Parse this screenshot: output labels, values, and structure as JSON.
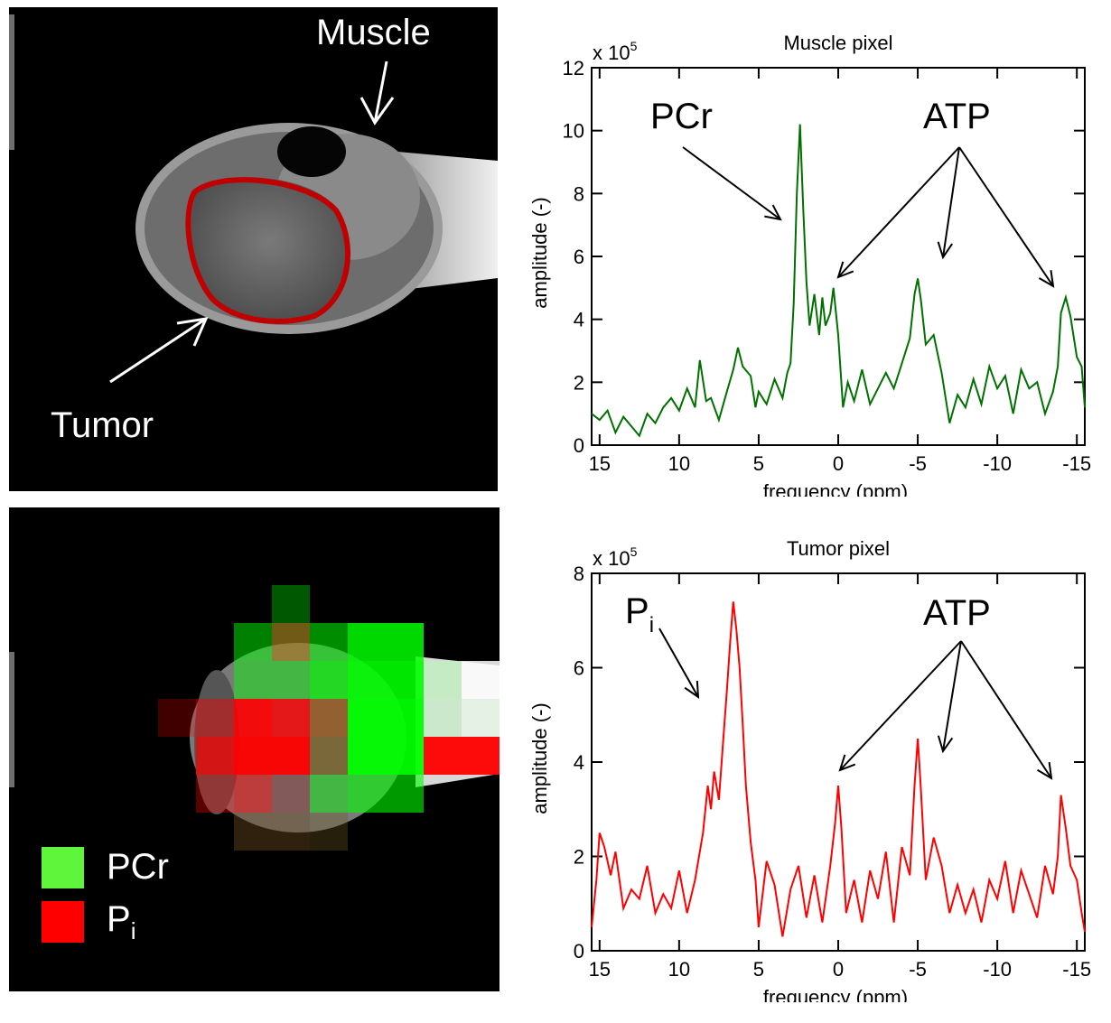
{
  "mri_top": {
    "muscle_label": "Muscle",
    "tumor_label": "Tumor",
    "outline_color": "#c00000"
  },
  "mri_bottom": {
    "legend": [
      {
        "label": "PCr",
        "color": "#5ef53a"
      },
      {
        "label": "P",
        "sub": "i",
        "color": "#ff0000"
      }
    ],
    "pcr_map_color": "#00ff00",
    "pi_map_color": "#ff0000"
  },
  "chart_data": [
    {
      "type": "line",
      "title": "Muscle pixel",
      "xlabel": "frequency (ppm)",
      "ylabel": "amplitude (-)",
      "y_multiplier": "x 10",
      "y_exponent": "5",
      "xlim": [
        15.5,
        -15.5
      ],
      "ylim": [
        0,
        12
      ],
      "xticks": [
        15,
        10,
        5,
        0,
        -5,
        -10,
        -15
      ],
      "yticks": [
        0,
        2,
        4,
        6,
        8,
        10,
        12
      ],
      "line_color": "#007000",
      "annotations": [
        {
          "text": "PCr"
        },
        {
          "text": "ATP"
        }
      ],
      "series": [
        {
          "name": "Muscle pixel",
          "x": [
            15.5,
            15,
            14.5,
            14,
            13.5,
            13,
            12.5,
            12,
            11.5,
            11,
            10.5,
            10,
            9.5,
            9,
            8.7,
            8.3,
            8,
            7.5,
            7,
            6.6,
            6.3,
            6,
            5.5,
            5.2,
            5,
            4.5,
            4,
            3.5,
            3.2,
            3,
            2.8,
            2.6,
            2.4,
            2.2,
            2,
            1.8,
            1.5,
            1.2,
            1,
            0.8,
            0.5,
            0.3,
            0,
            -0.3,
            -0.6,
            -1,
            -1.5,
            -2,
            -2.5,
            -3,
            -3.5,
            -4,
            -4.5,
            -4.8,
            -5,
            -5.2,
            -5.5,
            -6,
            -6.5,
            -7,
            -7.5,
            -8,
            -8.5,
            -9,
            -9.5,
            -10,
            -10.5,
            -11,
            -11.5,
            -12,
            -12.5,
            -13,
            -13.5,
            -13.8,
            -14,
            -14.3,
            -14.6,
            -15,
            -15.3,
            -15.5
          ],
          "y": [
            1,
            0.8,
            1.1,
            0.4,
            0.9,
            0.6,
            0.3,
            1,
            0.7,
            1.2,
            1.5,
            1.1,
            1.8,
            1.2,
            2.7,
            1.4,
            1.5,
            0.8,
            1.7,
            2.4,
            3.1,
            2.5,
            2.2,
            1.2,
            1.7,
            1.3,
            2.1,
            1.5,
            2.3,
            2.6,
            4.5,
            8,
            10.2,
            7.5,
            5.2,
            3.8,
            4.8,
            3.5,
            4.7,
            3.8,
            4.2,
            5,
            3.5,
            1.2,
            2,
            1.4,
            2.4,
            1.3,
            1.8,
            2.3,
            1.8,
            2.6,
            3.4,
            4.8,
            5.3,
            4.6,
            3.2,
            3.5,
            2.3,
            0.7,
            1.6,
            1.2,
            2.1,
            1.3,
            2.5,
            1.8,
            2.2,
            1,
            2.4,
            1.8,
            2,
            1,
            1.7,
            2.5,
            4.2,
            4.7,
            4.1,
            2.8,
            2.5,
            1.2
          ]
        }
      ]
    },
    {
      "type": "line",
      "title": "Tumor pixel",
      "xlabel": "frequency (ppm)",
      "ylabel": "amplitude (-)",
      "y_multiplier": "x 10",
      "y_exponent": "5",
      "xlim": [
        15.5,
        -15.5
      ],
      "ylim": [
        0,
        8
      ],
      "xticks": [
        15,
        10,
        5,
        0,
        -5,
        -10,
        -15
      ],
      "yticks": [
        0,
        2,
        4,
        6,
        8
      ],
      "line_color": "#ff0000",
      "annotations": [
        {
          "text": "P",
          "sub": "i"
        },
        {
          "text": "ATP"
        }
      ],
      "series": [
        {
          "name": "Tumor pixel",
          "x": [
            15.5,
            15.2,
            15,
            14.7,
            14.3,
            14,
            13.5,
            13,
            12.5,
            12,
            11.5,
            11,
            10.5,
            10,
            9.5,
            9,
            8.5,
            8.2,
            8,
            7.8,
            7.5,
            7.2,
            7,
            6.8,
            6.6,
            6.4,
            6.2,
            6,
            5.8,
            5.5,
            5.2,
            5,
            4.5,
            4,
            3.5,
            3,
            2.5,
            2,
            1.5,
            1,
            0.5,
            0.2,
            0,
            -0.2,
            -0.5,
            -1,
            -1.5,
            -2,
            -2.5,
            -3,
            -3.5,
            -4,
            -4.5,
            -4.8,
            -5,
            -5.2,
            -5.5,
            -6,
            -6.5,
            -7,
            -7.5,
            -8,
            -8.5,
            -9,
            -9.5,
            -10,
            -10.5,
            -11,
            -11.5,
            -12,
            -12.5,
            -13,
            -13.5,
            -13.8,
            -14,
            -14.3,
            -14.6,
            -15,
            -15.3,
            -15.5
          ],
          "y": [
            0.5,
            1.5,
            2.5,
            2.2,
            1.6,
            2.1,
            0.9,
            1.3,
            1.1,
            1.8,
            0.8,
            1.2,
            0.9,
            1.7,
            0.8,
            1.5,
            2.5,
            3.5,
            3,
            3.8,
            3.2,
            4.6,
            5.5,
            6.5,
            7.4,
            6.8,
            6,
            4.8,
            3.5,
            2.3,
            1.5,
            0.5,
            1.9,
            1.4,
            0.3,
            1.3,
            1.8,
            0.7,
            1.6,
            0.6,
            1.8,
            2.7,
            3.5,
            2.6,
            0.8,
            1.5,
            0.6,
            1.7,
            1.1,
            2.1,
            0.6,
            2.2,
            1.6,
            3.5,
            4.5,
            3.4,
            1.5,
            2.4,
            1.8,
            0.8,
            1.4,
            0.8,
            1.3,
            0.6,
            1.5,
            1.1,
            1.9,
            0.8,
            1.7,
            1.2,
            0.7,
            1.8,
            1.2,
            2,
            3.3,
            2.6,
            1.8,
            1.5,
            0.8,
            0.4
          ]
        }
      ]
    }
  ]
}
